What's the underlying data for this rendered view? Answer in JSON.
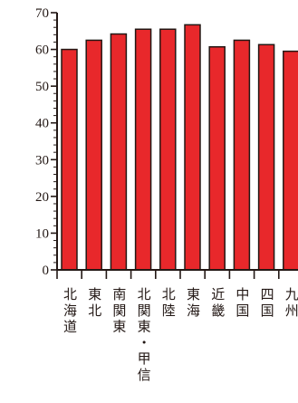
{
  "chart_data": {
    "type": "bar",
    "categories": [
      "北海道",
      "東北",
      "南関東",
      "北関東・甲信",
      "北陸",
      "東海",
      "近畿",
      "中国",
      "四国",
      "九州"
    ],
    "values": [
      60.0,
      62.5,
      64.2,
      65.5,
      65.5,
      66.7,
      60.7,
      62.5,
      61.3,
      59.5
    ],
    "ylim": [
      0,
      70
    ],
    "yticks": [
      "0",
      "10",
      "20",
      "30",
      "40",
      "50",
      "60",
      "70"
    ],
    "title": "",
    "xlabel": "",
    "ylabel": "",
    "grid": false,
    "bar_color": "#e8282b",
    "bar_edge_color": "#231815",
    "axis_color": "#231815"
  }
}
